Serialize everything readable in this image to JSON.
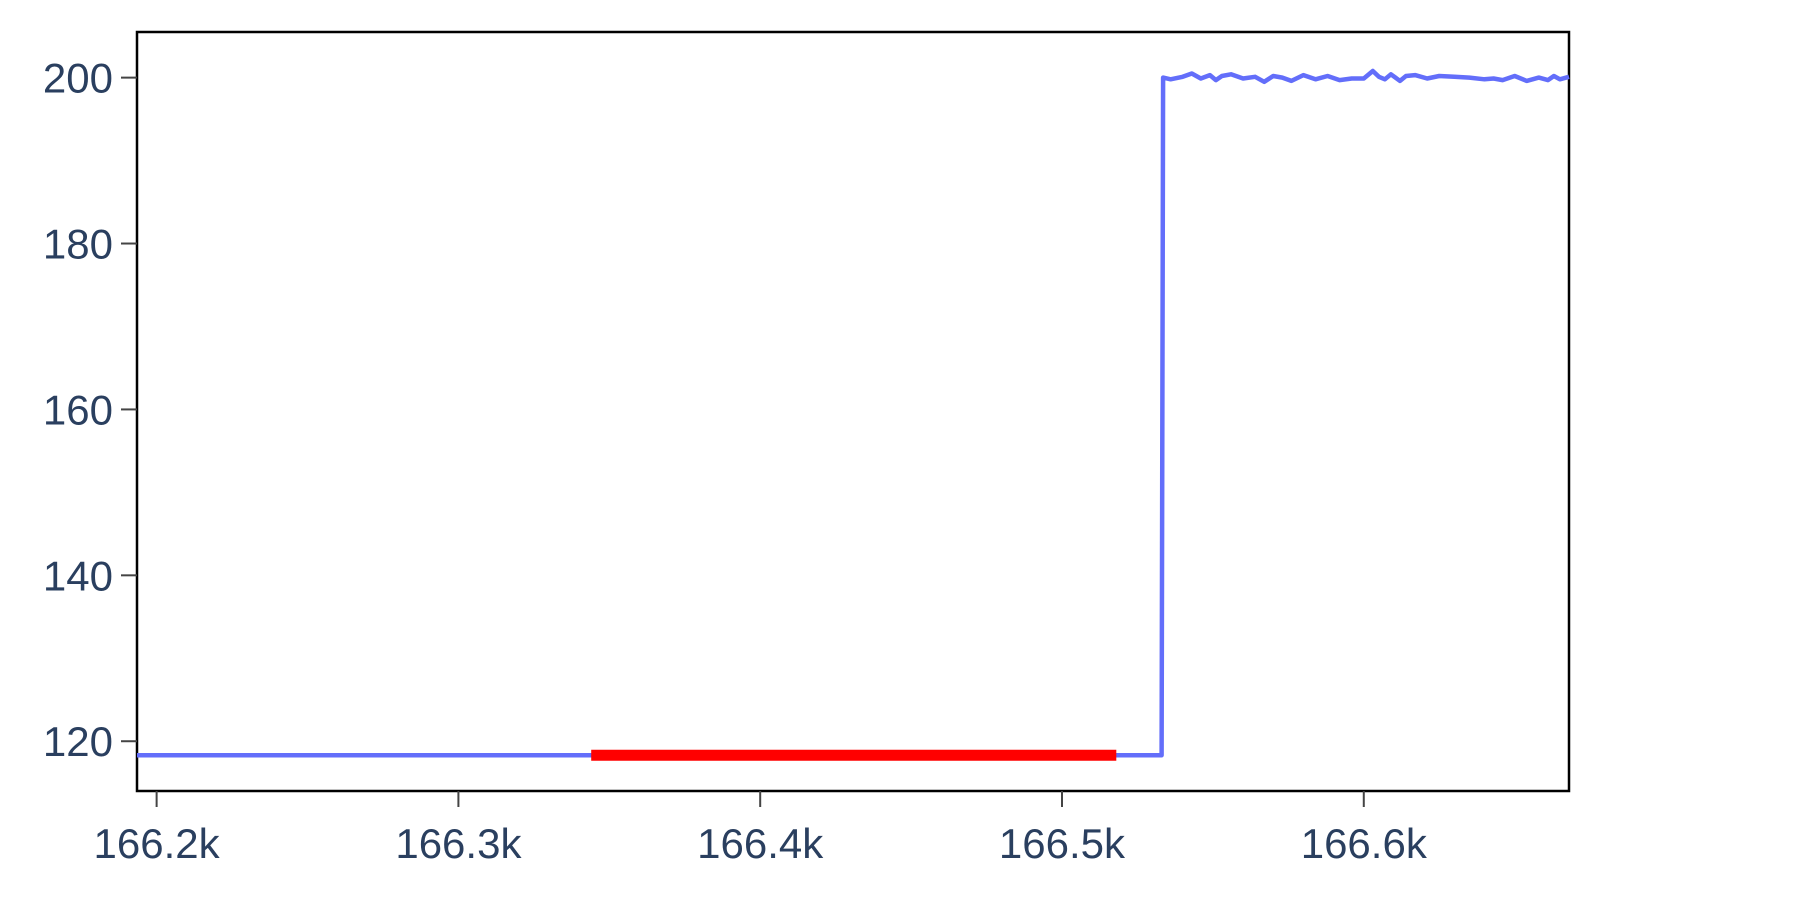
{
  "chart_data": {
    "type": "line",
    "title": "",
    "xlabel": "",
    "ylabel": "",
    "xlim": [
      166193.5,
      166668
    ],
    "ylim": [
      114,
      205.5
    ],
    "x_ticks": [
      166200,
      166300,
      166400,
      166500,
      166600
    ],
    "x_tick_labels": [
      "166.2k",
      "166.3k",
      "166.4k",
      "166.5k",
      "166.6k"
    ],
    "y_ticks": [
      120,
      140,
      160,
      180,
      200
    ],
    "y_tick_labels": [
      "120",
      "140",
      "160",
      "180",
      "200"
    ],
    "grid": false,
    "legend": "none",
    "series": [
      {
        "color": "#636efa",
        "x": [
          166193.5,
          166300,
          166400,
          166500,
          166533,
          166533.5,
          166536,
          166540,
          166543,
          166546,
          166549,
          166551,
          166553,
          166556,
          166560,
          166564,
          166567,
          166570,
          166573,
          166576,
          166580,
          166584,
          166588,
          166592,
          166596,
          166600,
          166603,
          166605,
          166607,
          166609,
          166612,
          166614,
          166617,
          166621,
          166625,
          166630,
          166635,
          166640,
          166643,
          166646,
          166650,
          166654,
          166658,
          166661,
          166663,
          166665,
          166668
        ],
        "y": [
          118.3,
          118.3,
          118.3,
          118.3,
          118.3,
          200,
          199.8,
          200.1,
          200.5,
          199.9,
          200.3,
          199.7,
          200.2,
          200.4,
          199.9,
          200.1,
          199.5,
          200.2,
          200,
          199.6,
          200.3,
          199.8,
          200.2,
          199.7,
          199.9,
          199.9,
          200.8,
          200.1,
          199.8,
          200.4,
          199.6,
          200.2,
          200.3,
          199.9,
          200.2,
          200.1,
          200,
          199.8,
          199.9,
          199.7,
          200.2,
          199.6,
          200,
          199.7,
          200.2,
          199.8,
          200.1
        ]
      },
      {
        "color": "#ff0000",
        "x": [
          166344,
          166518
        ],
        "y": [
          118.3,
          118.3
        ]
      }
    ]
  }
}
